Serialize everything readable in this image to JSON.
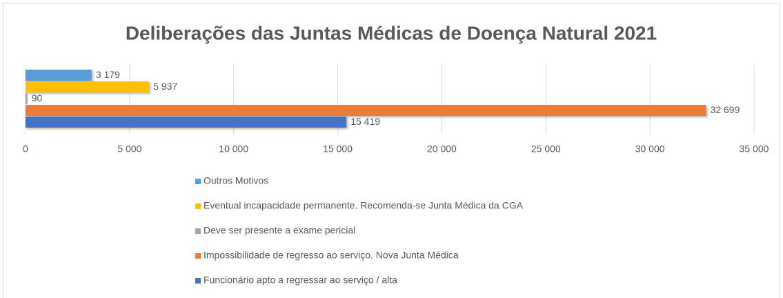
{
  "chart_data": {
    "type": "bar",
    "orientation": "horizontal",
    "title": "Deliberações das Juntas Médicas de Doença Natural 2021",
    "series": [
      {
        "name": "Outros Motivos",
        "color": "#5b9bd5",
        "values": [
          3179
        ],
        "value_labels": [
          "3 179"
        ]
      },
      {
        "name": "Eventual incapacidade permanente. Recomenda-se Junta Médica da CGA",
        "color": "#ffc000",
        "values": [
          5937
        ],
        "value_labels": [
          "5 937"
        ]
      },
      {
        "name": "Deve ser presente a exame pericial",
        "color": "#a5a5a5",
        "values": [
          90
        ],
        "value_labels": [
          "90"
        ]
      },
      {
        "name": "Impossibilidade de regresso ao serviço. Nova Junta Médica",
        "color": "#ed7d31",
        "values": [
          32699
        ],
        "value_labels": [
          "32 699"
        ]
      },
      {
        "name": "Funcionário apto a regressar ao serviço / alta",
        "color": "#4472c4",
        "values": [
          15419
        ],
        "value_labels": [
          "15 419"
        ]
      }
    ],
    "xlim": [
      0,
      35000
    ],
    "xticks": [
      0,
      {
        "value": 5000,
        "label": "5 000"
      },
      {
        "value": 10000,
        "label": "10 000"
      },
      {
        "value": 15000,
        "label": "15 000"
      },
      {
        "value": 20000,
        "label": "20 000"
      },
      {
        "value": 25000,
        "label": "25 000"
      },
      {
        "value": 30000,
        "label": "30 000"
      },
      {
        "value": 35000,
        "label": "35 000"
      }
    ],
    "grid": true,
    "legend": "bottom"
  }
}
